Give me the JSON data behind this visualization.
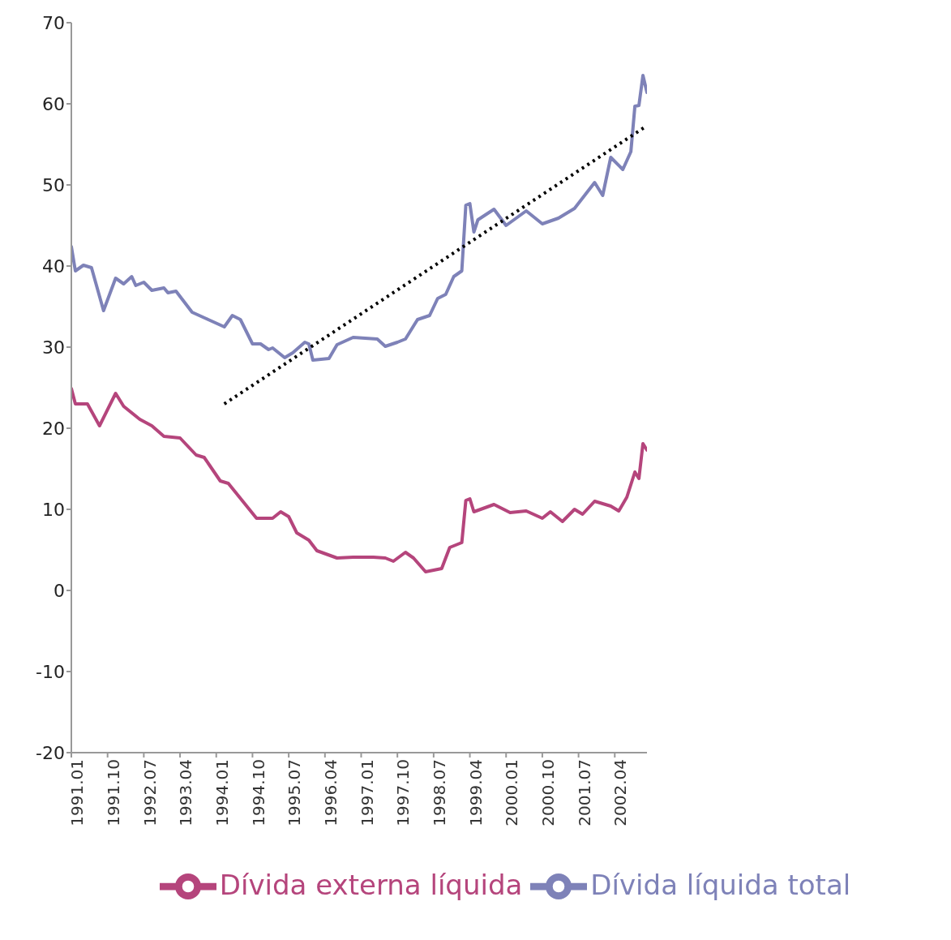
{
  "chart_data": {
    "type": "line",
    "xlim": [
      "1991-01",
      "2002-12"
    ],
    "xticks": [
      {
        "value": "1991-01",
        "label": "1991.01"
      },
      {
        "value": "1991-10",
        "label": "1991.10"
      },
      {
        "value": "1992-07",
        "label": "1992.07"
      },
      {
        "value": "1993-04",
        "label": "1993.04"
      },
      {
        "value": "1994-01",
        "label": "1994.01"
      },
      {
        "value": "1994-10",
        "label": "1994.10"
      },
      {
        "value": "1995-07",
        "label": "1995.07"
      },
      {
        "value": "1996-04",
        "label": "1996.04"
      },
      {
        "value": "1997-01",
        "label": "1997.01"
      },
      {
        "value": "1997-10",
        "label": "1997.10"
      },
      {
        "value": "1998-07",
        "label": "1998.07"
      },
      {
        "value": "1999-04",
        "label": "1999.04"
      },
      {
        "value": "2000-01",
        "label": "2000.01"
      },
      {
        "value": "2000-10",
        "label": "2000.10"
      },
      {
        "value": "2001-07",
        "label": "2001.07"
      },
      {
        "value": "2002-04",
        "label": "2002.04"
      }
    ],
    "ylim": [
      -20,
      70
    ],
    "yticks": [
      -20,
      -10,
      0,
      10,
      20,
      30,
      40,
      50,
      60,
      70
    ],
    "grid": false,
    "legend": "bottom",
    "marker": "none",
    "series": [
      {
        "name": "Dívida líquida total",
        "color": "#7e82b8",
        "line_style": "solid",
        "x": [
          "1991-01",
          "1991-02",
          "1991-04",
          "1991-06",
          "1991-09",
          "1991-12",
          "1992-02",
          "1992-04",
          "1992-05",
          "1992-07",
          "1992-09",
          "1992-12",
          "1993-01",
          "1993-03",
          "1993-07",
          "1993-11",
          "1994-03",
          "1994-05",
          "1994-07",
          "1994-10",
          "1994-12",
          "1995-02",
          "1995-03",
          "1995-06",
          "1995-08",
          "1995-11",
          "1995-12",
          "1996-01",
          "1996-05",
          "1996-07",
          "1996-11",
          "1997-05",
          "1997-07",
          "1997-10",
          "1997-12",
          "1998-03",
          "1998-06",
          "1998-08",
          "1998-10",
          "1998-12",
          "1999-02",
          "1999-03",
          "1999-04",
          "1999-05",
          "1999-06",
          "1999-10",
          "2000-01",
          "2000-06",
          "2000-10",
          "2001-02",
          "2001-06",
          "2001-11",
          "2002-01",
          "2002-03",
          "2002-06",
          "2002-08",
          "2002-09",
          "2002-10",
          "2002-11",
          "2002-12"
        ],
        "values": [
          42.4,
          39.4,
          40.1,
          39.8,
          34.5,
          38.5,
          37.8,
          38.7,
          37.6,
          38.0,
          37.0,
          37.3,
          36.7,
          36.9,
          34.3,
          33.4,
          32.5,
          33.9,
          33.4,
          30.4,
          30.4,
          29.7,
          29.9,
          28.7,
          29.3,
          30.6,
          30.4,
          28.4,
          28.6,
          30.3,
          31.2,
          31.0,
          30.1,
          30.6,
          31.0,
          33.4,
          33.9,
          36.0,
          36.5,
          38.7,
          39.4,
          47.5,
          47.7,
          44.2,
          45.7,
          47.0,
          45.0,
          46.8,
          45.2,
          45.9,
          47.1,
          50.3,
          48.7,
          53.4,
          51.9,
          54.1,
          59.7,
          59.8,
          63.5,
          61.4
        ]
      },
      {
        "name": "Dívida externa líquida",
        "color": "#b5457c",
        "line_style": "solid",
        "x": [
          "1991-01",
          "1991-02",
          "1991-05",
          "1991-08",
          "1991-12",
          "1992-02",
          "1992-06",
          "1992-09",
          "1992-12",
          "1993-04",
          "1993-08",
          "1993-10",
          "1994-02",
          "1994-04",
          "1994-11",
          "1995-03",
          "1995-05",
          "1995-07",
          "1995-09",
          "1995-12",
          "1996-02",
          "1996-07",
          "1996-11",
          "1997-04",
          "1997-07",
          "1997-09",
          "1997-12",
          "1998-02",
          "1998-05",
          "1998-09",
          "1998-11",
          "1999-02",
          "1999-03",
          "1999-04",
          "1999-05",
          "1999-10",
          "2000-02",
          "2000-06",
          "2000-10",
          "2000-12",
          "2001-03",
          "2001-06",
          "2001-08",
          "2001-11",
          "2002-03",
          "2002-05",
          "2002-07",
          "2002-09",
          "2002-10",
          "2002-11",
          "2002-12"
        ],
        "values": [
          24.9,
          23.0,
          23.0,
          20.3,
          24.3,
          22.7,
          21.1,
          20.3,
          19.0,
          18.8,
          16.7,
          16.4,
          13.5,
          13.2,
          8.9,
          8.9,
          9.7,
          9.1,
          7.1,
          6.2,
          4.9,
          4.0,
          4.1,
          4.1,
          4.0,
          3.6,
          4.7,
          4.0,
          2.3,
          2.7,
          5.3,
          5.9,
          11.1,
          11.3,
          9.7,
          10.6,
          9.6,
          9.8,
          8.9,
          9.7,
          8.5,
          10.0,
          9.4,
          11.0,
          10.4,
          9.8,
          11.5,
          14.6,
          13.8,
          18.1,
          17.3
        ]
      },
      {
        "type": "line",
        "color": "#000000",
        "line_style": "dotted",
        "x": [
          "1994-03",
          "2002-12"
        ],
        "values": [
          23.0,
          57.3
        ]
      }
    ]
  }
}
